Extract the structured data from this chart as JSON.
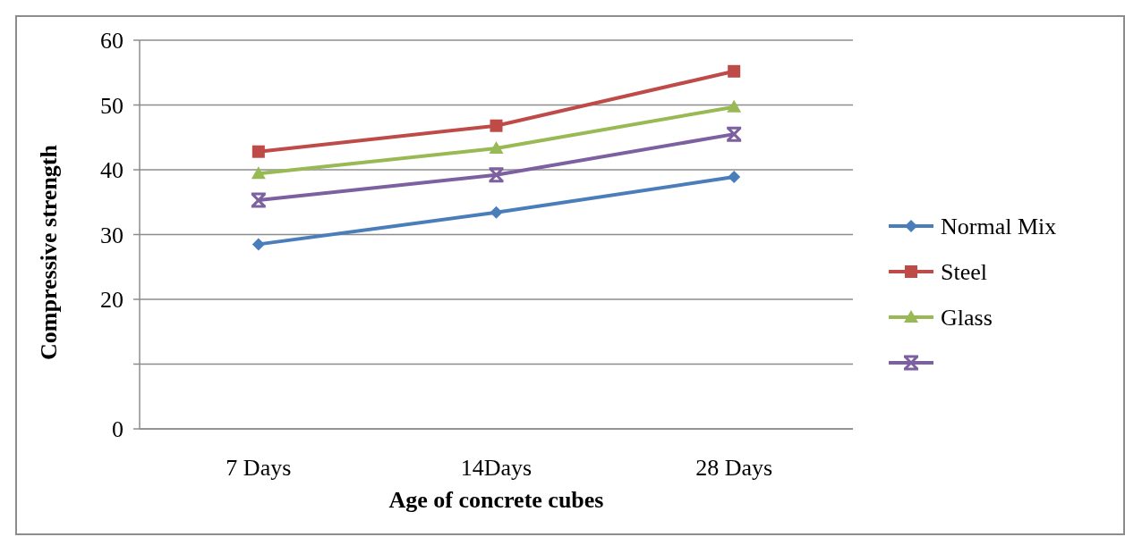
{
  "chart_data": {
    "type": "line",
    "xlabel": "Age of concrete cubes",
    "ylabel": "Compressive strength",
    "categories": [
      "7 Days",
      "14Days",
      "28 Days"
    ],
    "series": [
      {
        "name": "Normal Mix",
        "color": "#4a7ebb",
        "marker": "diamond",
        "values": [
          28.5,
          33.4,
          38.9
        ]
      },
      {
        "name": "Steel",
        "color": "#be4b48",
        "marker": "square",
        "values": [
          42.8,
          46.8,
          55.2
        ]
      },
      {
        "name": "Glass",
        "color": "#98b954",
        "marker": "triangle",
        "values": [
          39.4,
          43.3,
          49.7
        ]
      },
      {
        "color": "#7d60a0",
        "marker": "cross",
        "values": [
          35.3,
          39.2,
          45.5
        ]
      }
    ],
    "ylim": [
      0,
      60
    ],
    "yticks": [
      0,
      {
        "value": 10,
        "label": null
      },
      20,
      30,
      40,
      50,
      60
    ],
    "grid": "y",
    "legend": "right"
  }
}
